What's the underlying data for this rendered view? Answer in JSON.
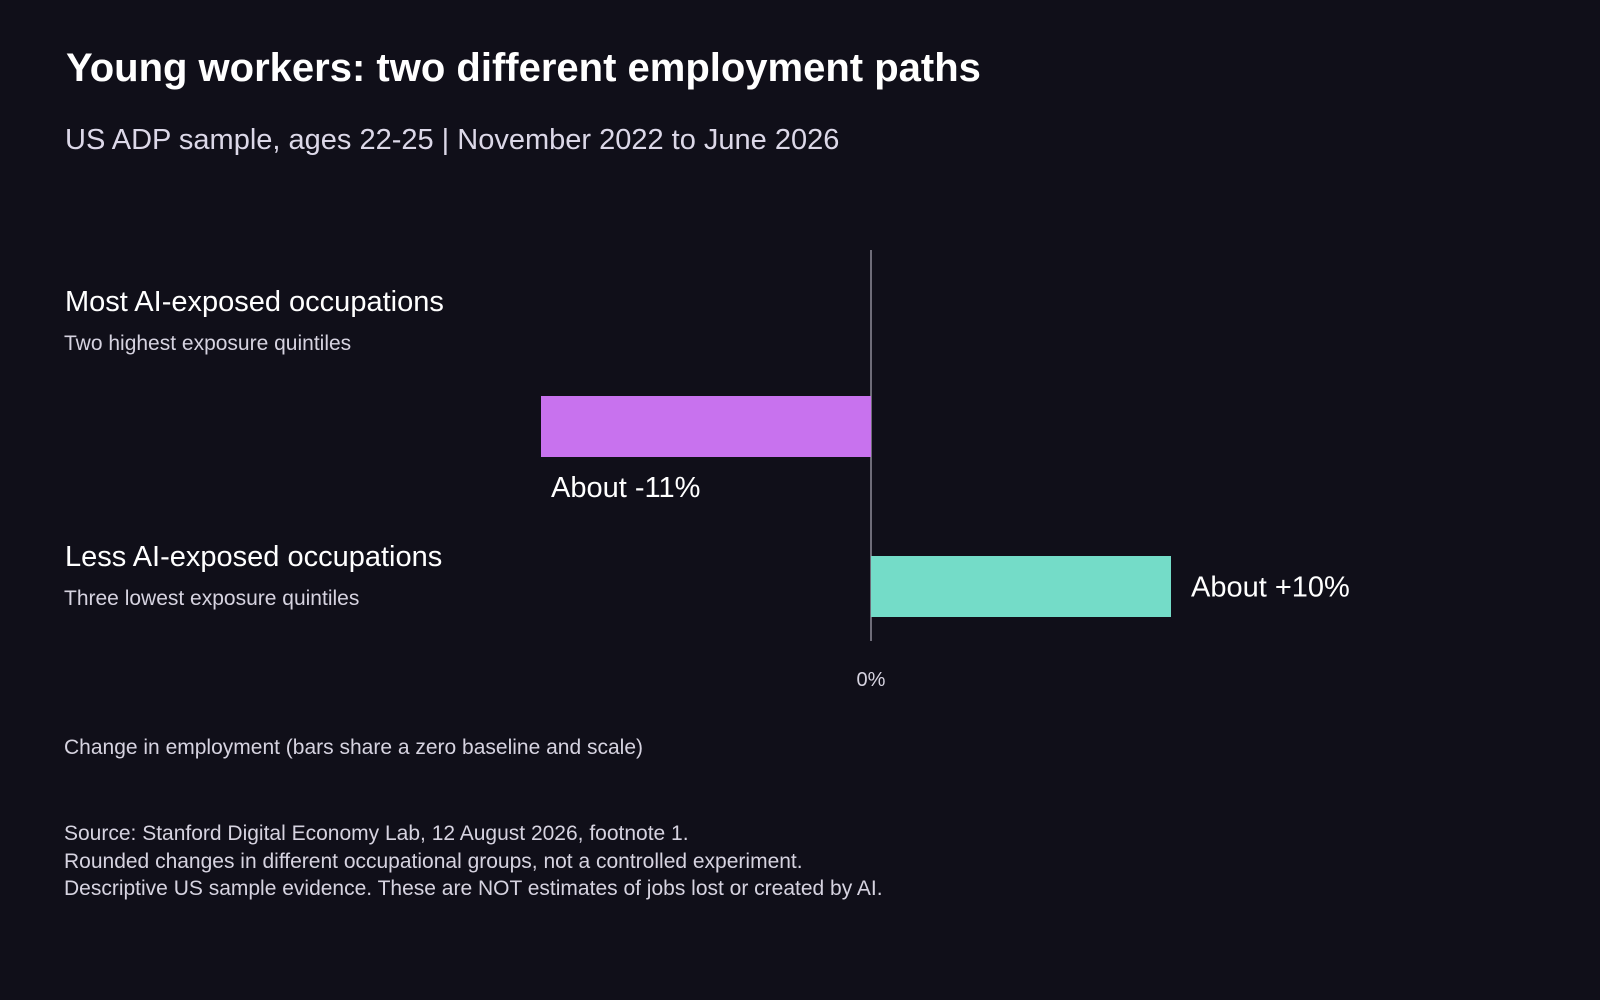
{
  "chart_data": {
    "type": "bar",
    "orientation": "horizontal",
    "title": "Young workers: two different employment paths",
    "subtitle": "US ADP sample, ages 22-25 | November 2022 to June 2026",
    "categories": [
      {
        "label": "Most AI-exposed occupations",
        "sublabel": "Two highest exposure quintiles",
        "value": -11,
        "value_label": "About -11%",
        "color": "#c872ee"
      },
      {
        "label": "Less AI-exposed occupations",
        "sublabel": "Three lowest exposure quintiles",
        "value": 10,
        "value_label": "About +10%",
        "color": "#74dcc8"
      }
    ],
    "zero_tick_label": "0%",
    "xlabel": "Change in employment (bars share a zero baseline and scale)",
    "grid": false,
    "legend": "none"
  },
  "source_lines": [
    "Source: Stanford Digital Economy Lab, 12 August 2026, footnote 1.",
    "Rounded changes in different occupational groups, not a controlled experiment.",
    "Descriptive US sample evidence. These are NOT estimates of jobs lost or created by AI."
  ],
  "colors": {
    "background": "#100f19",
    "zero_line": "#6e6c78"
  }
}
